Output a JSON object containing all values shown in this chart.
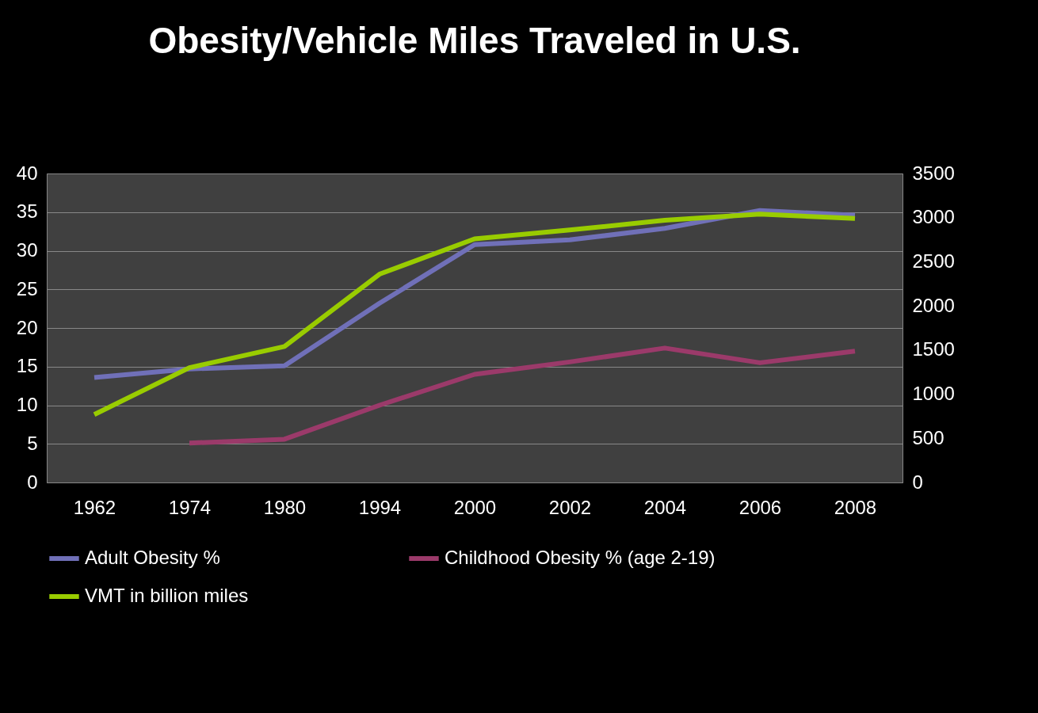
{
  "chart_data": {
    "type": "line",
    "title": "Obesity/Vehicle Miles Traveled in U.S.",
    "categories": [
      "1962",
      "1974",
      "1980",
      "1994",
      "2000",
      "2002",
      "2004",
      "2006",
      "2008"
    ],
    "series": [
      {
        "name": "Adult Obesity %",
        "color": "#7070b8",
        "values": [
          13.6,
          14.7,
          15.1,
          23.2,
          30.8,
          31.4,
          32.9,
          35.2,
          34.6
        ]
      },
      {
        "name": "Childhood Obesity % (age 2-19)",
        "color": "#9b3a6a",
        "values": [
          null,
          5.1,
          5.6,
          10,
          14,
          15.6,
          17.4,
          15.5,
          17
        ]
      },
      {
        "name": "VMT in billion miles",
        "color": "#99cc00",
        "axis": "y2",
        "values": [
          770,
          1300,
          1540,
          2360,
          2760,
          2860,
          2970,
          3040,
          2990
        ]
      }
    ],
    "ylim": [
      0,
      40
    ],
    "yticks": [
      0,
      5,
      10,
      15,
      20,
      25,
      30,
      35,
      40
    ],
    "y2lim": [
      0,
      3500
    ],
    "y2ticks": [
      0,
      500,
      1000,
      1500,
      2000,
      2500,
      3000,
      3500
    ],
    "grid": "y",
    "legend": "bottom"
  }
}
